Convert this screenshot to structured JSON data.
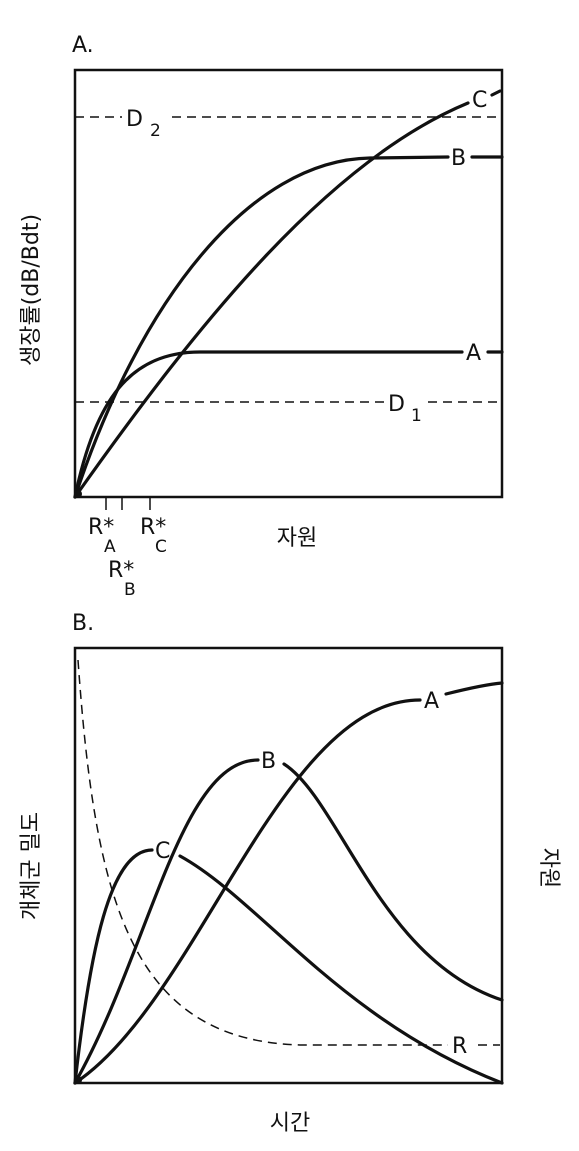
{
  "panel_a": {
    "label": "A.",
    "y_axis_label": "생장률(dB/Bdt)",
    "x_axis_label": "자원",
    "thresholds": [
      {
        "letter": "D",
        "subscript": "2"
      },
      {
        "letter": "D",
        "subscript": "1"
      }
    ],
    "curves": [
      "C",
      "B",
      "A"
    ],
    "r_stars": [
      {
        "symbol": "R*",
        "subscript": "A"
      },
      {
        "symbol": "R*",
        "subscript": "B"
      },
      {
        "symbol": "R*",
        "subscript": "C"
      }
    ]
  },
  "panel_b": {
    "label": "B.",
    "y_axis_label": "개체군 밀도",
    "y2_axis_label": "자원",
    "x_axis_label": "시간",
    "curves": [
      "A",
      "B",
      "C"
    ],
    "resource_curve": "R"
  }
}
